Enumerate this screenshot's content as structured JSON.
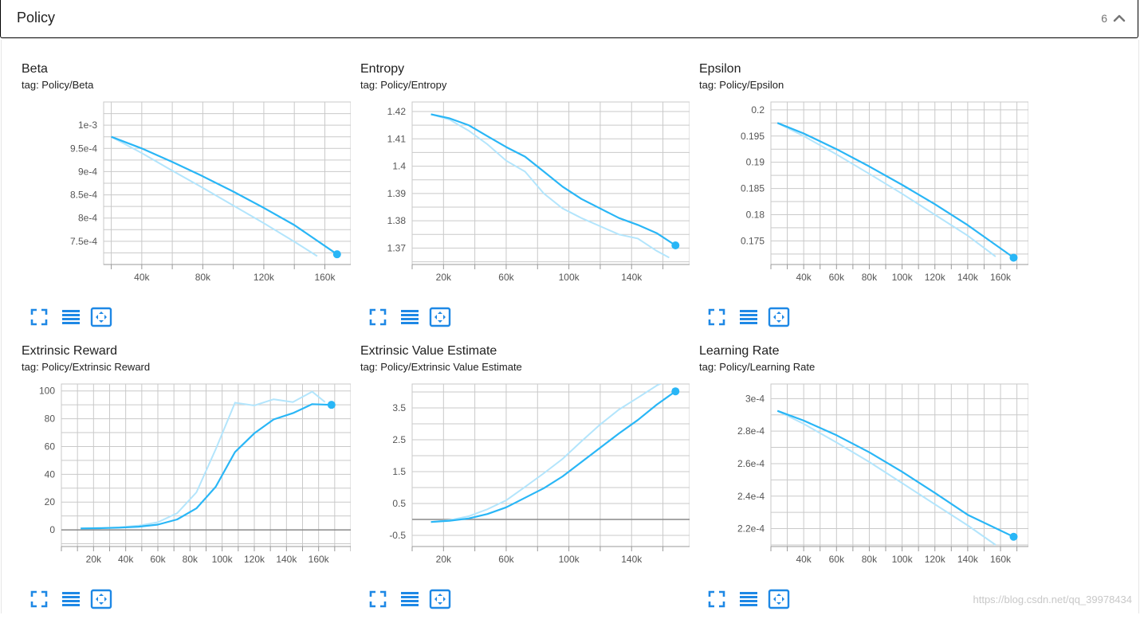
{
  "header": {
    "title": "Policy",
    "count": "6"
  },
  "watermark": "https://blog.csdn.net/qq_39978434",
  "colors": {
    "smoothed": "#29b6f6",
    "raw": "#b3e5fc",
    "grid": "#c9c9c9",
    "zero": "#8a8a8a"
  },
  "icons": [
    "expand-icon",
    "data-table-icon",
    "fit-domain-icon"
  ],
  "charts": [
    {
      "title": "Beta",
      "tag": "tag: Policy/Beta",
      "chart_data": {
        "type": "line",
        "xlim": [
          15000,
          177000
        ],
        "ylim": [
          0.0007,
          0.00105
        ],
        "xticks": [
          40000,
          80000,
          120000,
          160000
        ],
        "xtick_labels": [
          "40k",
          "80k",
          "120k",
          "160k"
        ],
        "yticks": [
          0.00075,
          0.0008,
          0.00085,
          0.0009,
          0.00095,
          0.001
        ],
        "ytick_labels": [
          "7.5e-4",
          "8e-4",
          "8.5e-4",
          "9e-4",
          "9.5e-4",
          "1e-3"
        ],
        "smoothed": {
          "x": [
            20000,
            40000,
            60000,
            80000,
            100000,
            120000,
            140000,
            168000
          ],
          "y": [
            0.000975,
            0.00095,
            0.000921,
            0.00089,
            0.000857,
            0.000822,
            0.000785,
            0.000722
          ]
        },
        "raw": {
          "x": [
            20000,
            40000,
            60000,
            80000,
            100000,
            120000,
            140000,
            155000
          ],
          "y": [
            0.000975,
            0.00094,
            0.000902,
            0.000865,
            0.000827,
            0.000789,
            0.000749,
            0.000718
          ]
        }
      }
    },
    {
      "title": "Entropy",
      "tag": "tag: Policy/Entropy",
      "chart_data": {
        "type": "line",
        "xlim": [
          0,
          177000
        ],
        "ylim": [
          1.364,
          1.4235
        ],
        "xticks": [
          20000,
          60000,
          100000,
          140000
        ],
        "xtick_labels": [
          "20k",
          "60k",
          "100k",
          "140k"
        ],
        "yticks": [
          1.37,
          1.38,
          1.39,
          1.4,
          1.41,
          1.42
        ],
        "ytick_labels": [
          "1.37",
          "1.38",
          "1.39",
          "1.4",
          "1.41",
          "1.42"
        ],
        "smoothed": {
          "x": [
            12000,
            24000,
            36000,
            48000,
            60000,
            72000,
            84000,
            96000,
            108000,
            120000,
            132000,
            144000,
            156000,
            168000
          ],
          "y": [
            1.419,
            1.4175,
            1.415,
            1.411,
            1.407,
            1.4035,
            1.398,
            1.3925,
            1.388,
            1.3845,
            1.381,
            1.3785,
            1.3755,
            1.371
          ]
        },
        "raw": {
          "x": [
            12000,
            24000,
            36000,
            48000,
            60000,
            72000,
            84000,
            96000,
            108000,
            120000,
            132000,
            144000,
            156000,
            164000
          ],
          "y": [
            1.419,
            1.417,
            1.413,
            1.408,
            1.402,
            1.398,
            1.39,
            1.3845,
            1.381,
            1.378,
            1.375,
            1.3735,
            1.369,
            1.3665
          ]
        }
      }
    },
    {
      "title": "Epsilon",
      "tag": "tag: Policy/Epsilon",
      "chart_data": {
        "type": "line",
        "xlim": [
          20000,
          177000
        ],
        "ylim": [
          0.1705,
          0.2015
        ],
        "xticks": [
          40000,
          60000,
          80000,
          100000,
          120000,
          140000,
          160000
        ],
        "xtick_labels": [
          "40k",
          "60k",
          "80k",
          "100k",
          "120k",
          "140k",
          "160k"
        ],
        "yticks": [
          0.175,
          0.18,
          0.185,
          0.19,
          0.195,
          0.2
        ],
        "ytick_labels": [
          "0.175",
          "0.18",
          "0.185",
          "0.19",
          "0.195",
          "0.2"
        ],
        "smoothed": {
          "x": [
            24000,
            40000,
            60000,
            80000,
            100000,
            120000,
            140000,
            168000
          ],
          "y": [
            0.1975,
            0.1955,
            0.1925,
            0.1892,
            0.1857,
            0.182,
            0.178,
            0.1718
          ]
        },
        "raw": {
          "x": [
            24000,
            40000,
            60000,
            80000,
            100000,
            120000,
            140000,
            157000
          ],
          "y": [
            0.1975,
            0.195,
            0.1915,
            0.1878,
            0.184,
            0.18,
            0.176,
            0.172
          ]
        }
      }
    },
    {
      "title": "Extrinsic Reward",
      "tag": "tag: Policy/Extrinsic Reward",
      "chart_data": {
        "type": "line",
        "xlim": [
          0,
          180000
        ],
        "ylim": [
          -12,
          105
        ],
        "xticks": [
          20000,
          40000,
          60000,
          80000,
          100000,
          120000,
          140000,
          160000
        ],
        "xtick_labels": [
          "20k",
          "40k",
          "60k",
          "80k",
          "100k",
          "120k",
          "140k",
          "160k"
        ],
        "yticks": [
          0,
          20,
          40,
          60,
          80,
          100
        ],
        "ytick_labels": [
          "0",
          "20",
          "40",
          "60",
          "80",
          "100"
        ],
        "zero_line": 0,
        "smoothed": {
          "x": [
            12000,
            24000,
            36000,
            48000,
            60000,
            72000,
            84000,
            96000,
            108000,
            120000,
            132000,
            144000,
            156000,
            168000
          ],
          "y": [
            1,
            1.2,
            1.6,
            2.3,
            3.8,
            7.5,
            15.5,
            31,
            56,
            69.5,
            79.5,
            84,
            90.5,
            90
          ]
        },
        "raw": {
          "x": [
            12000,
            24000,
            36000,
            48000,
            60000,
            72000,
            84000,
            96000,
            108000,
            120000,
            132000,
            144000,
            156000,
            164000
          ],
          "y": [
            1,
            1.3,
            1.8,
            3,
            5.5,
            12,
            27,
            58,
            91.5,
            89.5,
            94,
            92,
            99.5,
            92
          ]
        }
      }
    },
    {
      "title": "Extrinsic Value Estimate",
      "tag": "tag: Policy/Extrinsic Value Estimate",
      "chart_data": {
        "type": "line",
        "xlim": [
          0,
          177000
        ],
        "ylim": [
          -0.85,
          4.25
        ],
        "xticks": [
          20000,
          60000,
          100000,
          140000
        ],
        "xtick_labels": [
          "20k",
          "60k",
          "100k",
          "140k"
        ],
        "yticks": [
          -0.5,
          0.5,
          1.5,
          2.5,
          3.5
        ],
        "ytick_labels": [
          "-0.5",
          "0.5",
          "1.5",
          "2.5",
          "3.5"
        ],
        "zero_line": 0,
        "smoothed": {
          "x": [
            12000,
            24000,
            36000,
            48000,
            60000,
            72000,
            84000,
            96000,
            108000,
            120000,
            132000,
            144000,
            156000,
            168000
          ],
          "y": [
            -0.08,
            -0.04,
            0.03,
            0.17,
            0.38,
            0.68,
            0.98,
            1.35,
            1.8,
            2.25,
            2.7,
            3.12,
            3.6,
            4.02
          ]
        },
        "raw": {
          "x": [
            12000,
            24000,
            36000,
            48000,
            60000,
            72000,
            84000,
            96000,
            108000,
            120000,
            132000,
            144000,
            156000,
            160000
          ],
          "y": [
            -0.08,
            -0.02,
            0.1,
            0.32,
            0.6,
            1.02,
            1.45,
            1.9,
            2.45,
            2.98,
            3.45,
            3.82,
            4.2,
            4.3
          ]
        }
      }
    },
    {
      "title": "Learning Rate",
      "tag": "tag: Policy/Learning Rate",
      "chart_data": {
        "type": "line",
        "xlim": [
          20000,
          177000
        ],
        "ylim": [
          0.000209,
          0.000309
        ],
        "xticks": [
          40000,
          60000,
          80000,
          100000,
          120000,
          140000,
          160000
        ],
        "xtick_labels": [
          "40k",
          "60k",
          "80k",
          "100k",
          "120k",
          "140k",
          "160k"
        ],
        "yticks": [
          0.00022,
          0.00024,
          0.00026,
          0.00028,
          0.0003
        ],
        "ytick_labels": [
          "2.2e-4",
          "2.4e-4",
          "2.6e-4",
          "2.8e-4",
          "3e-4"
        ],
        "smoothed": {
          "x": [
            24000,
            40000,
            60000,
            80000,
            100000,
            120000,
            140000,
            168000
          ],
          "y": [
            0.0002925,
            0.0002865,
            0.0002775,
            0.000267,
            0.000255,
            0.000242,
            0.0002285,
            0.000215
          ]
        },
        "raw": {
          "x": [
            24000,
            40000,
            60000,
            80000,
            100000,
            120000,
            140000,
            157000
          ],
          "y": [
            0.0002925,
            0.0002845,
            0.000273,
            0.000261,
            0.000248,
            0.000235,
            0.000222,
            0.00021
          ]
        }
      }
    }
  ]
}
